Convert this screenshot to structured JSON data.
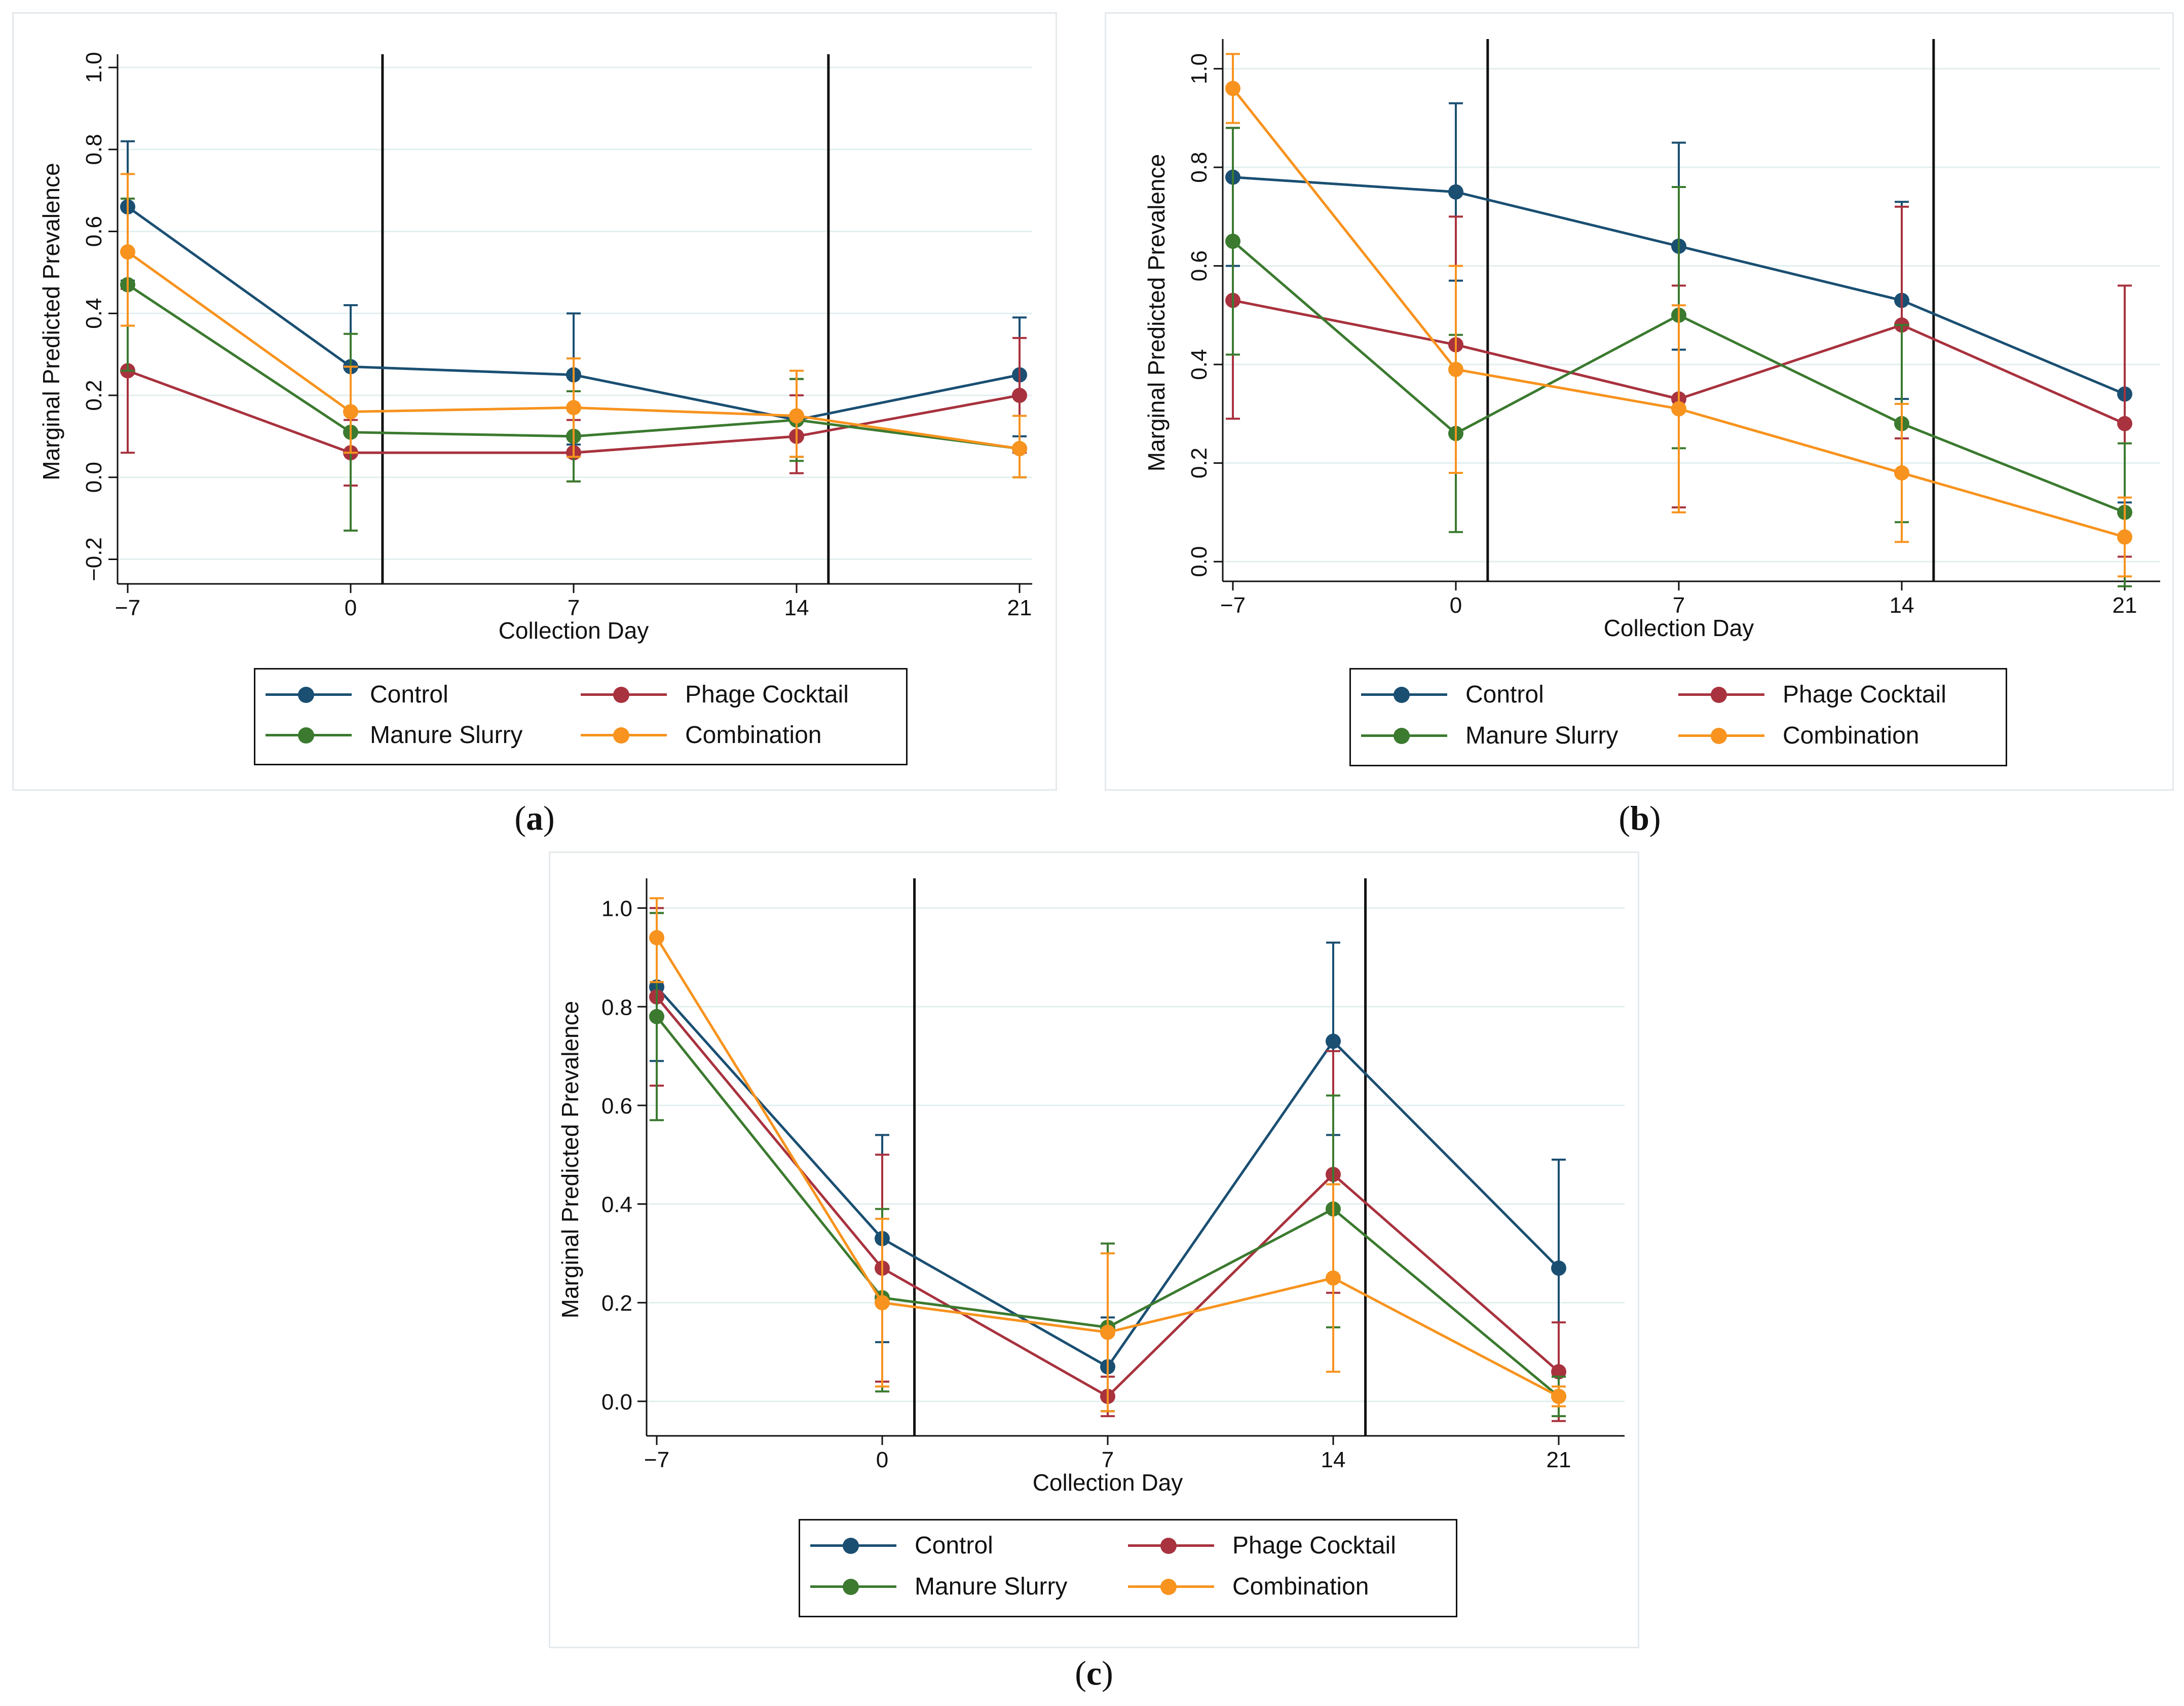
{
  "colors": {
    "control": "#1a4f72",
    "phage": "#a8323e",
    "manure": "#3b7a2f",
    "combination": "#f7931e",
    "grid": "#e2efef",
    "axis": "#111111"
  },
  "legend": {
    "items": [
      {
        "key": "control",
        "label": "Control"
      },
      {
        "key": "phage",
        "label": "Phage Cocktail"
      },
      {
        "key": "manure",
        "label": "Manure Slurry"
      },
      {
        "key": "combination",
        "label": "Combination"
      }
    ]
  },
  "captions": {
    "a": "a",
    "b": "b",
    "c": "c"
  },
  "chart_data": [
    {
      "id": "a",
      "type": "line",
      "xlabel": "Collection Day",
      "ylabel": "Marginal Predicted Prevalence",
      "x": [
        -7,
        0,
        7,
        14,
        21
      ],
      "x_tick_labels": [
        "−7",
        "0",
        "7",
        "14",
        "21"
      ],
      "ylim": [
        -0.26,
        1.02
      ],
      "y_ticks": [
        -0.2,
        0.0,
        0.2,
        0.4,
        0.6,
        0.8,
        1.0
      ],
      "y_tick_labels": [
        "−0.2",
        "0.0",
        "0.2",
        "0.4",
        "0.6",
        "0.8",
        "1.0"
      ],
      "y_labels_rotated": true,
      "vlines": [
        1,
        15
      ],
      "series": [
        {
          "key": "control",
          "name": "Control",
          "values": [
            0.66,
            0.27,
            0.25,
            0.14,
            0.25
          ],
          "lower": [
            0.48,
            0.11,
            0.08,
            0.05,
            0.1
          ],
          "upper": [
            0.82,
            0.42,
            0.4,
            0.24,
            0.39
          ]
        },
        {
          "key": "phage",
          "name": "Phage Cocktail",
          "values": [
            0.26,
            0.06,
            0.06,
            0.1,
            0.2
          ],
          "lower": [
            0.06,
            -0.02,
            -0.01,
            0.01,
            0.06
          ],
          "upper": [
            0.46,
            0.14,
            0.14,
            0.2,
            0.34
          ]
        },
        {
          "key": "manure",
          "name": "Manure Slurry",
          "values": [
            0.47,
            0.11,
            0.1,
            0.14,
            0.07
          ],
          "lower": [
            0.26,
            -0.13,
            -0.01,
            0.04,
            0.0
          ],
          "upper": [
            0.68,
            0.35,
            0.21,
            0.24,
            0.15
          ]
        },
        {
          "key": "combination",
          "name": "Combination",
          "values": [
            0.55,
            0.16,
            0.17,
            0.15,
            0.07
          ],
          "lower": [
            0.37,
            0.06,
            0.05,
            0.05,
            0.0
          ],
          "upper": [
            0.74,
            0.27,
            0.29,
            0.26,
            0.15
          ]
        }
      ]
    },
    {
      "id": "b",
      "type": "line",
      "xlabel": "Collection Day",
      "ylabel": "Marginal Predicted Prevalence",
      "x": [
        -7,
        0,
        7,
        14,
        21
      ],
      "x_tick_labels": [
        "−7",
        "0",
        "7",
        "14",
        "21"
      ],
      "ylim": [
        -0.04,
        1.05
      ],
      "y_ticks": [
        0.0,
        0.2,
        0.4,
        0.6,
        0.8,
        1.0
      ],
      "y_tick_labels": [
        "0.0",
        "0.2",
        "0.4",
        "0.6",
        "0.8",
        "1.0"
      ],
      "y_labels_rotated": true,
      "vlines": [
        1,
        15
      ],
      "series": [
        {
          "key": "control",
          "name": "Control",
          "values": [
            0.78,
            0.75,
            0.64,
            0.53,
            0.34
          ],
          "lower": [
            0.6,
            0.57,
            0.43,
            0.33,
            0.12
          ],
          "upper": [
            0.88,
            0.93,
            0.85,
            0.73,
            0.56
          ]
        },
        {
          "key": "phage",
          "name": "Phage Cocktail",
          "values": [
            0.53,
            0.44,
            0.33,
            0.48,
            0.28
          ],
          "lower": [
            0.29,
            0.18,
            0.11,
            0.25,
            0.01
          ],
          "upper": [
            0.88,
            0.7,
            0.56,
            0.72,
            0.56
          ]
        },
        {
          "key": "manure",
          "name": "Manure Slurry",
          "values": [
            0.65,
            0.26,
            0.5,
            0.28,
            0.1
          ],
          "lower": [
            0.42,
            0.06,
            0.23,
            0.08,
            -0.05
          ],
          "upper": [
            0.88,
            0.46,
            0.76,
            0.48,
            0.24
          ]
        },
        {
          "key": "combination",
          "name": "Combination",
          "values": [
            0.96,
            0.39,
            0.31,
            0.18,
            0.05
          ],
          "lower": [
            0.89,
            0.18,
            0.1,
            0.04,
            -0.03
          ],
          "upper": [
            1.03,
            0.6,
            0.52,
            0.32,
            0.13
          ]
        }
      ]
    },
    {
      "id": "c",
      "type": "line",
      "xlabel": "Collection Day",
      "ylabel": "Marginal Predicted Prevalence",
      "x": [
        -7,
        0,
        7,
        14,
        21
      ],
      "x_tick_labels": [
        "−7",
        "0",
        "7",
        "14",
        "21"
      ],
      "ylim": [
        -0.07,
        1.05
      ],
      "y_ticks": [
        0.0,
        0.2,
        0.4,
        0.6,
        0.8,
        1.0
      ],
      "y_tick_labels": [
        "0.0",
        "0.2",
        "0.4",
        "0.6",
        "0.8",
        "1.0"
      ],
      "y_labels_rotated": false,
      "vlines": [
        1,
        15
      ],
      "series": [
        {
          "key": "control",
          "name": "Control",
          "values": [
            0.84,
            0.33,
            0.07,
            0.73,
            0.27
          ],
          "lower": [
            0.69,
            0.12,
            -0.02,
            0.54,
            0.05
          ],
          "upper": [
            0.99,
            0.54,
            0.17,
            0.93,
            0.49
          ]
        },
        {
          "key": "phage",
          "name": "Phage Cocktail",
          "values": [
            0.82,
            0.27,
            0.01,
            0.46,
            0.06
          ],
          "lower": [
            0.64,
            0.04,
            -0.03,
            0.22,
            -0.04
          ],
          "upper": [
            1.0,
            0.5,
            0.05,
            0.71,
            0.16
          ]
        },
        {
          "key": "manure",
          "name": "Manure Slurry",
          "values": [
            0.78,
            0.21,
            0.15,
            0.39,
            0.01
          ],
          "lower": [
            0.57,
            0.02,
            -0.02,
            0.15,
            -0.03
          ],
          "upper": [
            0.99,
            0.39,
            0.32,
            0.62,
            0.05
          ]
        },
        {
          "key": "combination",
          "name": "Combination",
          "values": [
            0.94,
            0.2,
            0.14,
            0.25,
            0.01
          ],
          "lower": [
            0.85,
            0.03,
            -0.02,
            0.06,
            -0.01
          ],
          "upper": [
            1.02,
            0.37,
            0.3,
            0.44,
            0.03
          ]
        }
      ]
    }
  ]
}
